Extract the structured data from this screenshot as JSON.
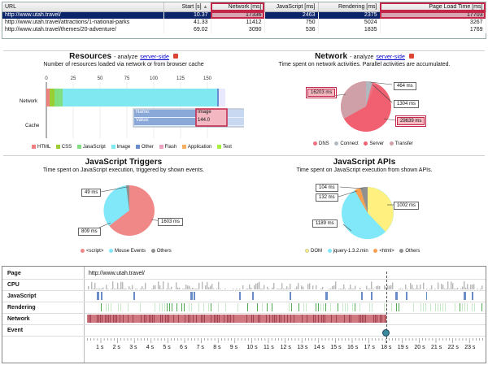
{
  "table": {
    "headers": [
      "URL",
      "Start [s]",
      "Network [ms]",
      "JavaScript [ms]",
      "Rendering [ms]",
      "Page Load Time [ms]"
    ],
    "sort_arrow": "▲",
    "rows": [
      {
        "url": "http://www.utah.travel/",
        "start": "10.37",
        "network": "17336",
        "javascript": "2463",
        "rendering": "2375",
        "load": "17703"
      },
      {
        "url": "http://www.utah.travel/attractions/1-national-parks",
        "start": "41.33",
        "network": "11412",
        "javascript": "750",
        "rendering": "5024",
        "load": "3267"
      },
      {
        "url": "http://www.utah.travel/themes/20-adventure/",
        "start": "69.02",
        "network": "3090",
        "javascript": "536",
        "rendering": "1835",
        "load": "1769"
      }
    ]
  },
  "resources": {
    "title": "Resources",
    "analyze_prefix": "- analyze",
    "link": "server-side",
    "subtitle": "Number of resources loaded via network or from browser cache",
    "row_network": "Network",
    "row_cache": "Cache",
    "tooltip": {
      "name_label": "Name:",
      "name_value": "Image",
      "value_label": "Value:",
      "value_value": "144.0"
    },
    "legend": [
      "HTML",
      "CSS",
      "JavaScript",
      "Image",
      "Other",
      "Flash",
      "Application",
      "Text"
    ],
    "colors": [
      "#f08080",
      "#9acd32",
      "#80e080",
      "#7fe8f0",
      "#6a8cd0",
      "#f0a0c0",
      "#f8b060",
      "#a8f040"
    ]
  },
  "network": {
    "title": "Network",
    "analyze_prefix": "- analyze",
    "link": "server-side",
    "subtitle": "Time spent on network activities. Parallel activities are accumulated.",
    "callouts": {
      "c1": "16203 ms",
      "c2": "464 ms",
      "c3": "1304 ms",
      "c4": "29639 ms"
    },
    "legend": [
      "DNS",
      "Connect",
      "Server",
      "Transfer"
    ],
    "colors": [
      "#f07080",
      "#b0b8c0",
      "#f06070",
      "#d0a0a8"
    ]
  },
  "js_triggers": {
    "title": "JavaScript Triggers",
    "subtitle": "Time spent on JavaScript execution, triggered by shown events.",
    "callouts": {
      "c1": "49 ms",
      "c2": "1603 ms",
      "c3": "809 ms"
    },
    "legend": [
      "<script>",
      "Mouse Events",
      "Others"
    ],
    "colors": [
      "#f08888",
      "#80e8f8",
      "#909090"
    ]
  },
  "js_apis": {
    "title": "JavaScript APIs",
    "subtitle": "Time spent on JavaScript execution from shown APIs.",
    "callouts": {
      "c1": "104 ms",
      "c2": "132 ms",
      "c3": "1002 ms",
      "c4": "1189 ms"
    },
    "legend": [
      "DOM",
      "jquery-1.3.2.min",
      "<html>",
      "Others"
    ],
    "colors": [
      "#fff080",
      "#80e8f8",
      "#f8a050",
      "#909090"
    ]
  },
  "timeline": {
    "labels": [
      "Page",
      "CPU",
      "JavaScript",
      "Rendering",
      "Network",
      "Event"
    ],
    "page_url": "http://www.utah.travel/",
    "ticks": [
      "1 s",
      "2 s",
      "3 s",
      "4 s",
      "5 s",
      "6 s",
      "7 s",
      "8 s",
      "9 s",
      "10 s",
      "11 s",
      "12 s",
      "13 s",
      "14 s",
      "15 s",
      "16 s",
      "17 s",
      "18 s",
      "19 s",
      "20 s",
      "21 s",
      "22 s",
      "23 s"
    ]
  }
}
